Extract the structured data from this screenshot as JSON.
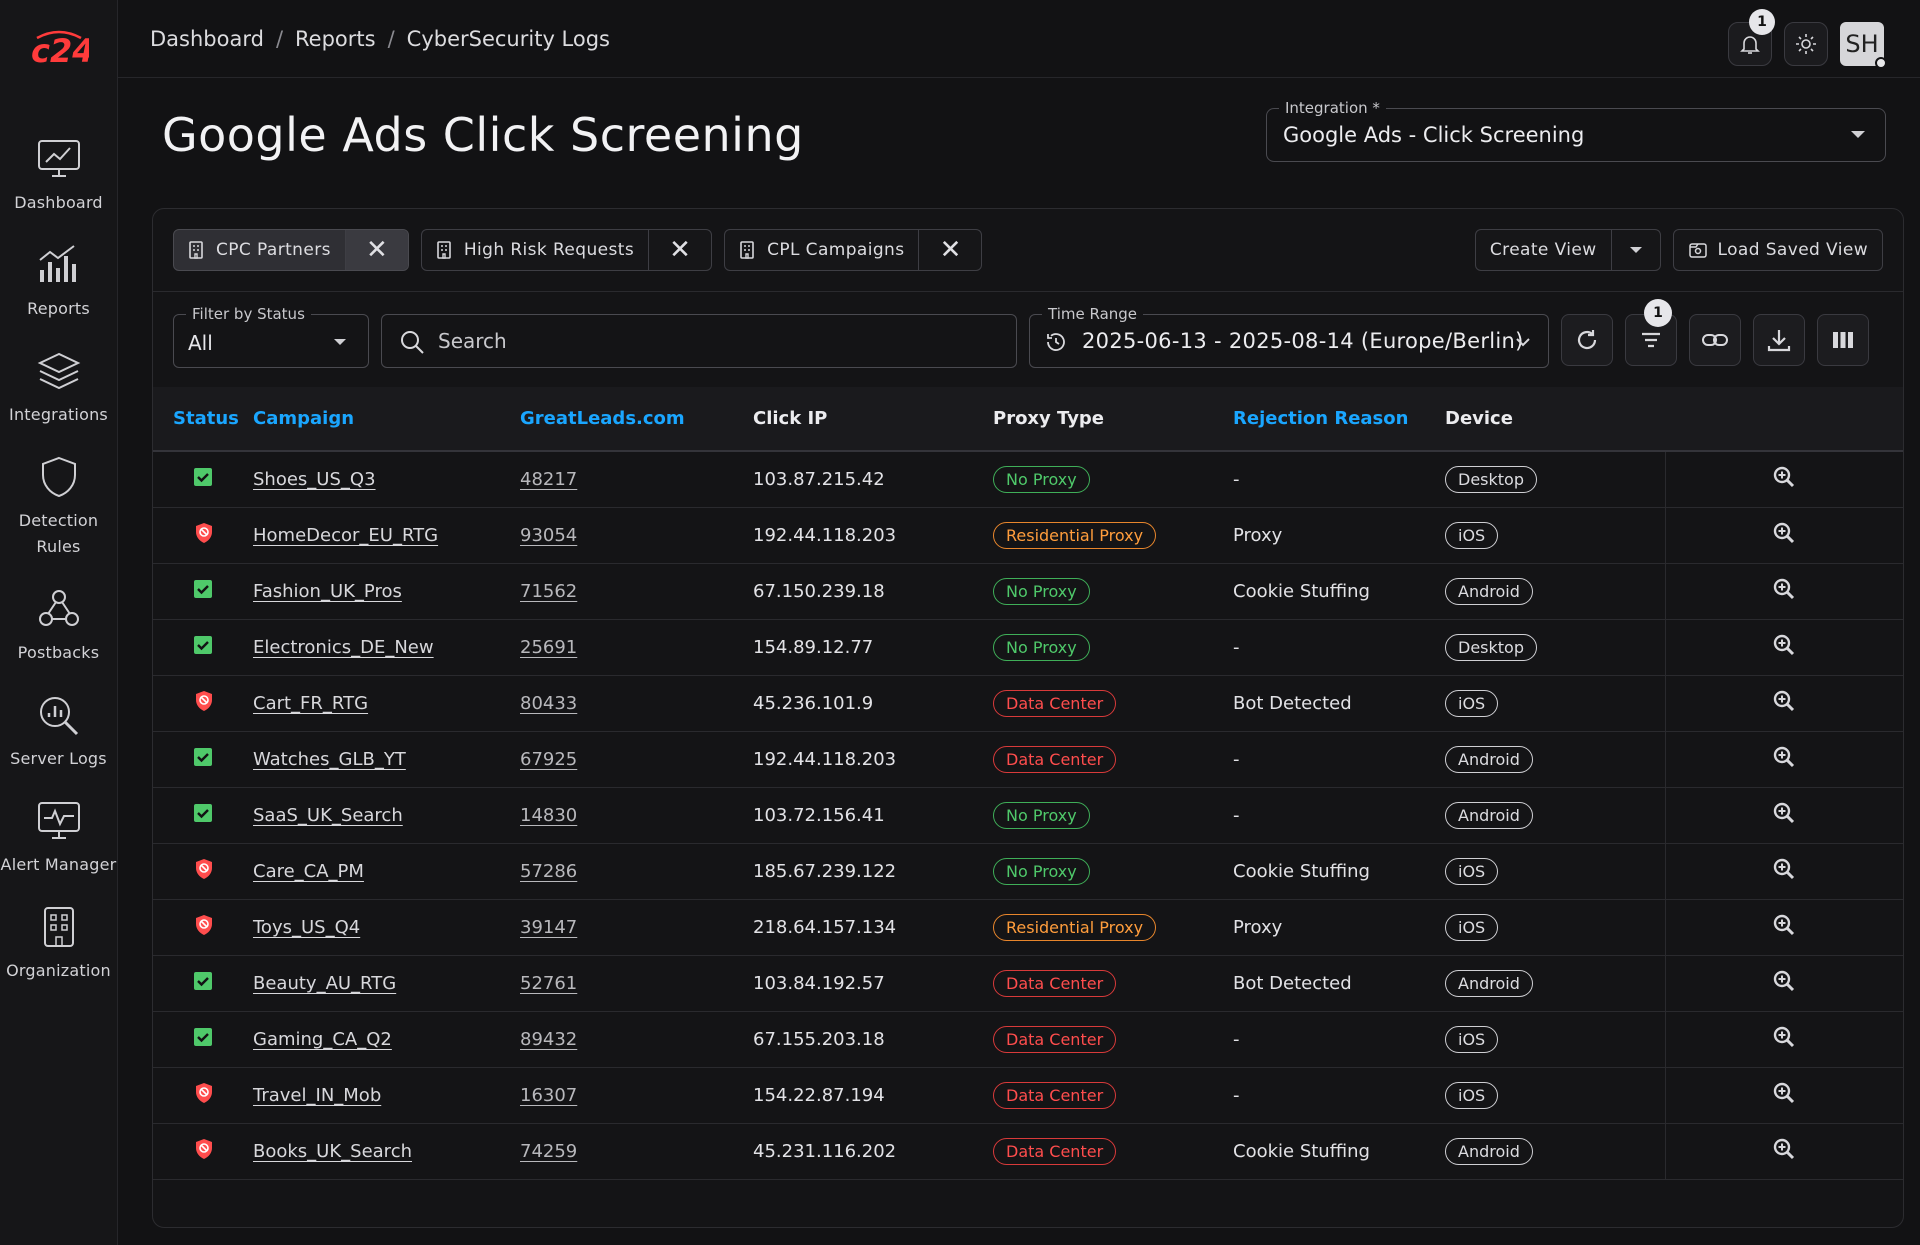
{
  "breadcrumbs": [
    "Dashboard",
    "Reports",
    "CyberSecurity Logs"
  ],
  "notifications_count": "1",
  "user_initials": "SH",
  "page_title": "Google Ads Click Screening",
  "integration": {
    "label": "Integration *",
    "value": "Google Ads - Click Screening"
  },
  "sidebar": [
    {
      "label": "Dashboard",
      "icon": "chart-monitor-icon"
    },
    {
      "label": "Reports",
      "icon": "bar-chart-icon"
    },
    {
      "label": "Integrations",
      "icon": "layers-icon"
    },
    {
      "label": "Detection Rules",
      "icon": "shield-icon"
    },
    {
      "label": "Postbacks",
      "icon": "webhook-icon"
    },
    {
      "label": "Server Logs",
      "icon": "magnify-chart-icon"
    },
    {
      "label": "Alert Manager",
      "icon": "pulse-monitor-icon"
    },
    {
      "label": "Organization",
      "icon": "building-icon"
    }
  ],
  "views": [
    {
      "label": "CPC Partners",
      "active": true
    },
    {
      "label": "High Risk Requests",
      "active": false
    },
    {
      "label": "CPL Campaigns",
      "active": false
    }
  ],
  "create_view_label": "Create View",
  "load_saved_view_label": "Load Saved View",
  "filter_status": {
    "label": "Filter by Status",
    "value": "All"
  },
  "search_placeholder": "Search",
  "time_range": {
    "label": "Time Range",
    "value": "2025-06-13 - 2025-08-14 (Europe/Berlin)"
  },
  "filter_badge": "1",
  "columns": [
    "Status",
    "Campaign",
    "GreatLeads.com",
    "Click IP",
    "Proxy Type",
    "Rejection Reason",
    "Device"
  ],
  "sortable_columns": [
    "Status",
    "Campaign",
    "GreatLeads.com",
    "Rejection Reason"
  ],
  "rows": [
    {
      "status": "ok",
      "campaign": "Shoes_US_Q3",
      "id": "48217",
      "ip": "103.87.215.42",
      "proxy": "No Proxy",
      "reason": "-",
      "device": "Desktop"
    },
    {
      "status": "blocked",
      "campaign": "HomeDecor_EU_RTG",
      "id": "93054",
      "ip": "192.44.118.203",
      "proxy": "Residential Proxy",
      "reason": "Proxy",
      "device": "iOS"
    },
    {
      "status": "ok",
      "campaign": "Fashion_UK_Pros",
      "id": "71562",
      "ip": "67.150.239.18",
      "proxy": "No Proxy",
      "reason": "Cookie Stuffing",
      "device": "Android"
    },
    {
      "status": "ok",
      "campaign": "Electronics_DE_New",
      "id": "25691",
      "ip": "154.89.12.77",
      "proxy": "No Proxy",
      "reason": "-",
      "device": "Desktop"
    },
    {
      "status": "blocked",
      "campaign": "Cart_FR_RTG",
      "id": "80433",
      "ip": "45.236.101.9",
      "proxy": "Data Center",
      "reason": "Bot Detected",
      "device": "iOS"
    },
    {
      "status": "ok",
      "campaign": "Watches_GLB_YT",
      "id": "67925",
      "ip": "192.44.118.203",
      "proxy": "Data Center",
      "reason": "-",
      "device": "Android"
    },
    {
      "status": "ok",
      "campaign": "SaaS_UK_Search",
      "id": "14830",
      "ip": "103.72.156.41",
      "proxy": "No Proxy",
      "reason": "-",
      "device": "Android"
    },
    {
      "status": "blocked",
      "campaign": "Care_CA_PM",
      "id": "57286",
      "ip": "185.67.239.122",
      "proxy": "No Proxy",
      "reason": "Cookie Stuffing",
      "device": "iOS"
    },
    {
      "status": "blocked",
      "campaign": "Toys_US_Q4",
      "id": "39147",
      "ip": "218.64.157.134",
      "proxy": "Residential Proxy",
      "reason": "Proxy",
      "device": "iOS"
    },
    {
      "status": "ok",
      "campaign": "Beauty_AU_RTG",
      "id": "52761",
      "ip": "103.84.192.57",
      "proxy": "Data Center",
      "reason": "Bot Detected",
      "device": "Android"
    },
    {
      "status": "ok",
      "campaign": "Gaming_CA_Q2",
      "id": "89432",
      "ip": "67.155.203.18",
      "proxy": "Data Center",
      "reason": "-",
      "device": "iOS"
    },
    {
      "status": "blocked",
      "campaign": "Travel_IN_Mob",
      "id": "16307",
      "ip": "154.22.87.194",
      "proxy": "Data Center",
      "reason": "-",
      "device": "iOS"
    },
    {
      "status": "blocked",
      "campaign": "Books_UK_Search",
      "id": "74259",
      "ip": "45.231.116.202",
      "proxy": "Data Center",
      "reason": "Cookie Stuffing",
      "device": "Android"
    }
  ],
  "colors": {
    "accent": "#1aa6ff",
    "ok": "#4fc96a",
    "orange": "#ff9d3c",
    "red": "#ff4d4d",
    "logo": "#ff3b3b"
  }
}
